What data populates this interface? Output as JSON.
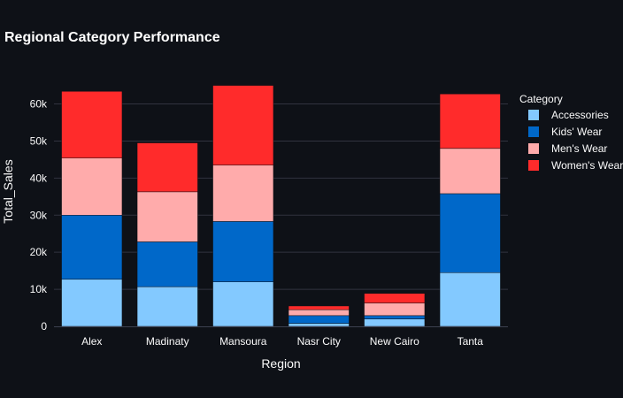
{
  "chart_data": {
    "type": "bar",
    "stacked": true,
    "title": "Regional Category Performance",
    "xlabel": "Region",
    "ylabel": "Total_Sales",
    "categories": [
      "Alex",
      "Madinaty",
      "Mansoura",
      "Nasr City",
      "New Cairo",
      "Tanta"
    ],
    "ylim": [
      0,
      68000
    ],
    "yticks": [
      0,
      10000,
      20000,
      30000,
      40000,
      50000,
      60000
    ],
    "ytick_labels": [
      "0",
      "10k",
      "20k",
      "30k",
      "40k",
      "50k",
      "60k"
    ],
    "grid": true,
    "legend": {
      "title": "Category",
      "placement": "right"
    },
    "series": [
      {
        "name": "Accessories",
        "color": "#83c9ff",
        "values": [
          12700,
          10700,
          12000,
          800,
          2000,
          14500
        ]
      },
      {
        "name": "Kids' Wear",
        "color": "#0068c9",
        "values": [
          17300,
          12100,
          16300,
          2100,
          900,
          21300
        ]
      },
      {
        "name": "Men's Wear",
        "color": "#ffabab",
        "values": [
          15400,
          13500,
          15200,
          1600,
          3400,
          12200
        ]
      },
      {
        "name": "Women's Wear",
        "color": "#ff2b2b",
        "values": [
          18000,
          13200,
          21500,
          1000,
          2600,
          14700
        ]
      }
    ]
  }
}
